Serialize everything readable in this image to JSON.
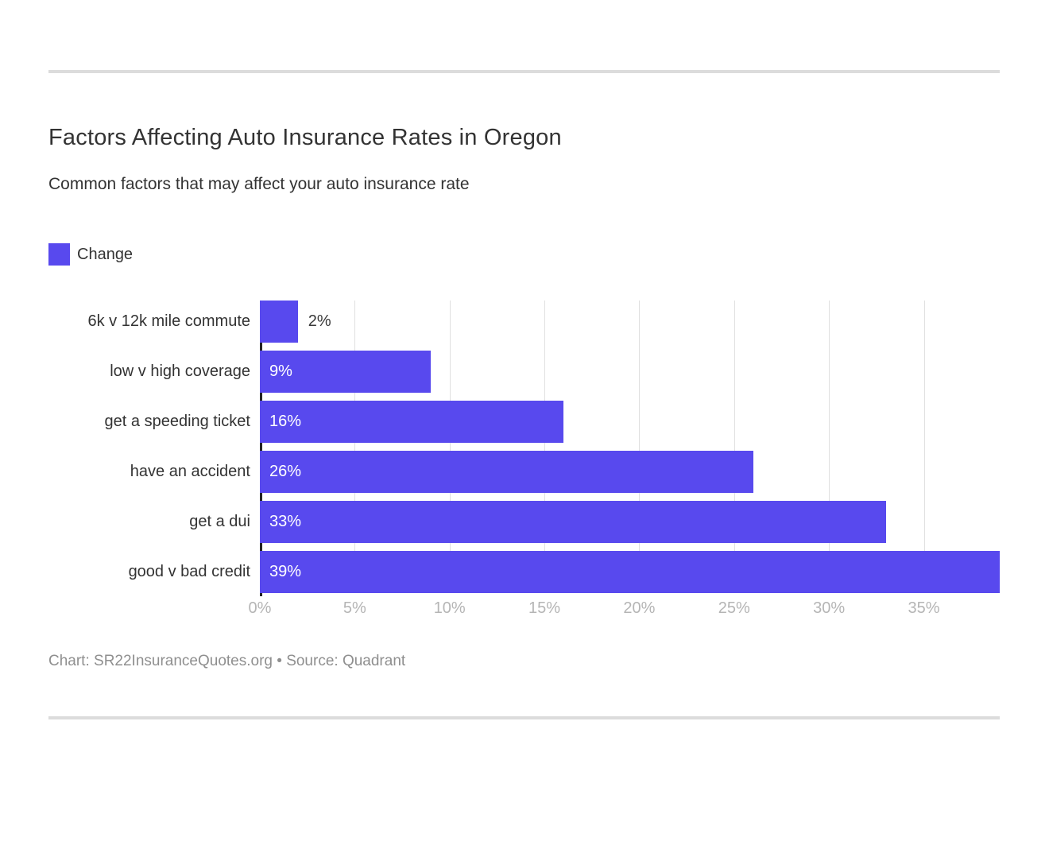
{
  "header": {
    "title": "Factors Affecting Auto Insurance Rates in Oregon",
    "subtitle": "Common factors that may affect your auto insurance rate"
  },
  "legend": {
    "label": "Change",
    "swatch_color": "#5849ee"
  },
  "chart_data": {
    "type": "bar",
    "orientation": "horizontal",
    "series_name": "Change",
    "categories": [
      "6k v 12k mile commute",
      "low v high coverage",
      "get a speeding ticket",
      "have an accident",
      "get a dui",
      "good v bad credit"
    ],
    "values": [
      2,
      9,
      16,
      26,
      33,
      39
    ],
    "value_labels": [
      "2%",
      "9%",
      "16%",
      "26%",
      "33%",
      "39%"
    ],
    "xlim": [
      0,
      39
    ],
    "x_ticks": [
      "0%",
      "5%",
      "10%",
      "15%",
      "20%",
      "25%",
      "30%",
      "35%"
    ],
    "x_tick_values": [
      0,
      5,
      10,
      15,
      20,
      25,
      30,
      35
    ],
    "bar_color": "#5849ee",
    "grid": true,
    "gridline_color": "#e0e0e0",
    "legend_position": "top-left",
    "inside_label_threshold": 4
  },
  "footer": {
    "text": "Chart: SR22InsuranceQuotes.org • Source: Quadrant"
  }
}
